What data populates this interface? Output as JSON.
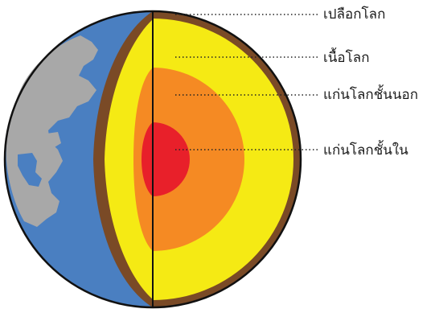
{
  "labels": {
    "crust": "เปลือกโลก",
    "mantle": "เนื้อโลก",
    "outer_core": "แก่นโลกชั้นนอก",
    "inner_core": "แก่นโลกชั้นใน"
  },
  "colors": {
    "ocean": "#4a7fc1",
    "land": "#a8a8a8",
    "crust": "#7a4a26",
    "mantle": "#f5ea14",
    "outer_core": "#f58a23",
    "inner_core": "#e8202a",
    "outline": "#111111",
    "leader": "#222222"
  }
}
